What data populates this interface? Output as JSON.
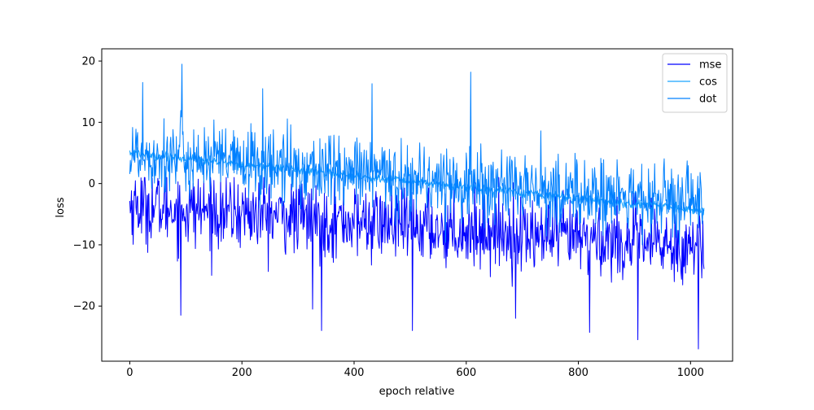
{
  "chart_data": {
    "type": "line",
    "xlabel": "epoch relative",
    "ylabel": "loss",
    "xlim": [
      -50,
      1075
    ],
    "ylim": [
      -29,
      22
    ],
    "xticks": [
      0,
      200,
      400,
      600,
      800,
      1000
    ],
    "yticks": [
      -20,
      -10,
      0,
      10,
      20
    ],
    "grid": false,
    "legend_position": "top-right",
    "n_points": 1025,
    "series": [
      {
        "name": "mse",
        "color": "#0000ff",
        "trend": {
          "start": -3.5,
          "end": -10.5
        },
        "noise_std": 3.0,
        "range": [
          -27,
          1
        ],
        "spikes": [
          {
            "x": 91,
            "y": -21.5
          },
          {
            "x": 326,
            "y": -20.5
          },
          {
            "x": 342,
            "y": -24
          },
          {
            "x": 504,
            "y": -24
          },
          {
            "x": 688,
            "y": -22
          },
          {
            "x": 820,
            "y": -24.3
          },
          {
            "x": 906,
            "y": -25.5
          },
          {
            "x": 1014,
            "y": -27
          }
        ]
      },
      {
        "name": "cos",
        "color": "#1aa3ff",
        "trend": {
          "start": 5.0,
          "end": -4.5
        },
        "noise_std": 0.4,
        "range": [
          -6,
          6
        ]
      },
      {
        "name": "dot",
        "color": "#0080ff",
        "trend": {
          "start": 5.0,
          "end": -3.5
        },
        "noise_std": 3.0,
        "range": [
          -10,
          20
        ],
        "spikes": [
          {
            "x": 23,
            "y": 16.5
          },
          {
            "x": 93,
            "y": 19.5
          },
          {
            "x": 237,
            "y": 15.5
          },
          {
            "x": 432,
            "y": 16.3
          },
          {
            "x": 608,
            "y": 18.2
          }
        ]
      }
    ]
  }
}
